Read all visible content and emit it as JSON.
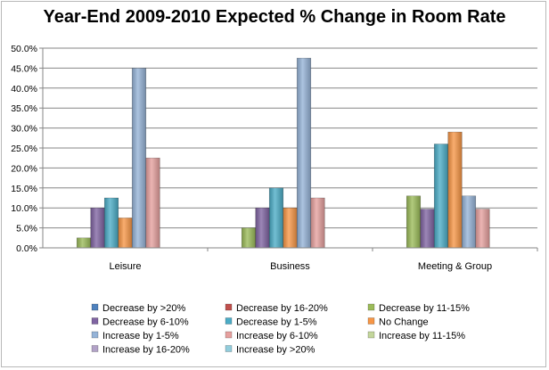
{
  "chart_data": {
    "type": "bar",
    "title": "Year-End 2009-2010 Expected % Change in Room Rate",
    "xlabel": "",
    "ylabel": "",
    "ylim": [
      0,
      50
    ],
    "yticks": [
      "0.0%",
      "5.0%",
      "10.0%",
      "15.0%",
      "20.0%",
      "25.0%",
      "30.0%",
      "35.0%",
      "40.0%",
      "45.0%",
      "50.0%"
    ],
    "grid": true,
    "legend_position": "bottom",
    "categories": [
      "Leisure",
      "Business",
      "Meeting & Group"
    ],
    "series": [
      {
        "name": "Decrease by >20%",
        "color": "#4f81bd",
        "values": [
          0,
          0,
          0
        ]
      },
      {
        "name": "Decrease by 16-20%",
        "color": "#c0504d",
        "values": [
          0,
          0,
          0
        ]
      },
      {
        "name": "Decrease by 11-15%",
        "color": "#9bbb59",
        "values": [
          2.5,
          5.0,
          13.0
        ]
      },
      {
        "name": "Decrease by 6-10%",
        "color": "#8064a2",
        "values": [
          10.0,
          10.0,
          9.7
        ]
      },
      {
        "name": "Decrease by 1-5%",
        "color": "#4bacc6",
        "values": [
          12.5,
          15.0,
          26.0
        ]
      },
      {
        "name": "No Change",
        "color": "#f79646",
        "values": [
          7.5,
          10.0,
          29.0
        ]
      },
      {
        "name": "Increase by 1-5%",
        "color": "#95b3d7",
        "values": [
          45.0,
          47.5,
          13.0
        ]
      },
      {
        "name": "Increase by 6-10%",
        "color": "#e6a09e",
        "values": [
          22.5,
          12.5,
          9.7
        ]
      },
      {
        "name": "Increase by 11-15%",
        "color": "#c3d69b",
        "values": [
          0,
          0,
          0
        ]
      },
      {
        "name": "Increase by 16-20%",
        "color": "#b2a2c7",
        "values": [
          0,
          0,
          0
        ]
      },
      {
        "name": "Increase by >20%",
        "color": "#92cddc",
        "values": [
          0,
          0,
          0
        ]
      }
    ]
  }
}
